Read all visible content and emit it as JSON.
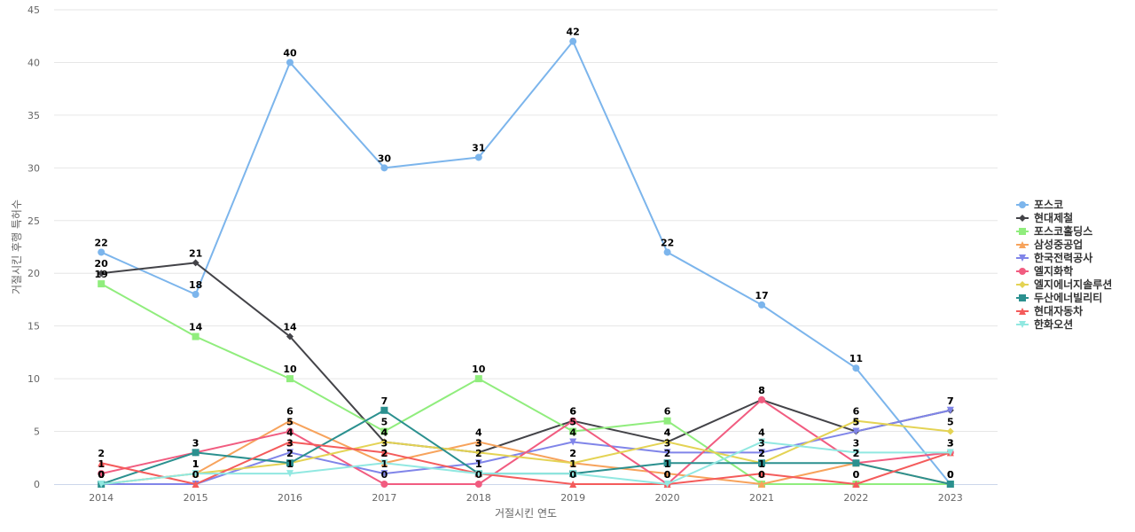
{
  "chart_data": {
    "type": "line",
    "xlabel": "거절시킨 연도",
    "ylabel": "거절시킨 후행 특허수",
    "ylim": [
      0,
      45
    ],
    "yticks": [
      0,
      5,
      10,
      15,
      20,
      25,
      30,
      35,
      40,
      45
    ],
    "x": [
      "2014",
      "2015",
      "2016",
      "2017",
      "2018",
      "2019",
      "2020",
      "2021",
      "2022",
      "2023"
    ],
    "grid": true,
    "legend": "right",
    "series": [
      {
        "name": "포스코",
        "color": "#7cb5ec",
        "marker": "circle",
        "values": [
          22,
          18,
          40,
          30,
          31,
          42,
          22,
          17,
          11,
          0
        ]
      },
      {
        "name": "현대제철",
        "color": "#434348",
        "marker": "diamond",
        "values": [
          20,
          21,
          14,
          4,
          3,
          6,
          4,
          8,
          5,
          7
        ]
      },
      {
        "name": "포스코홀딩스",
        "color": "#90ed7d",
        "marker": "square",
        "values": [
          19,
          14,
          10,
          5,
          10,
          5,
          6,
          0,
          0,
          0
        ]
      },
      {
        "name": "삼성중공업",
        "color": "#f7a35c",
        "marker": "triangle",
        "values": [
          0,
          1,
          6,
          2,
          4,
          2,
          1,
          0,
          2,
          0
        ]
      },
      {
        "name": "한국전력공사",
        "color": "#8085e9",
        "marker": "triangle-down",
        "values": [
          0,
          0,
          3,
          1,
          2,
          4,
          3,
          3,
          5,
          7
        ]
      },
      {
        "name": "엘지화학",
        "color": "#f15c80",
        "marker": "circle",
        "values": [
          1,
          3,
          5,
          0,
          0,
          6,
          0,
          8,
          2,
          3
        ]
      },
      {
        "name": "엘지에너지솔루션",
        "color": "#e4d354",
        "marker": "diamond",
        "values": [
          0,
          1,
          2,
          4,
          3,
          2,
          4,
          2,
          6,
          5
        ]
      },
      {
        "name": "두산에너빌리티",
        "color": "#2b908f",
        "marker": "square",
        "values": [
          0,
          3,
          2,
          7,
          1,
          1,
          2,
          2,
          2,
          0
        ]
      },
      {
        "name": "현대자동차",
        "color": "#f45b5b",
        "marker": "triangle",
        "values": [
          2,
          0,
          4,
          3,
          1,
          0,
          0,
          1,
          0,
          3
        ]
      },
      {
        "name": "한화오션",
        "color": "#91e8e1",
        "marker": "triangle-down",
        "values": [
          0,
          1,
          1,
          2,
          1,
          1,
          0,
          4,
          3,
          3
        ]
      }
    ]
  }
}
